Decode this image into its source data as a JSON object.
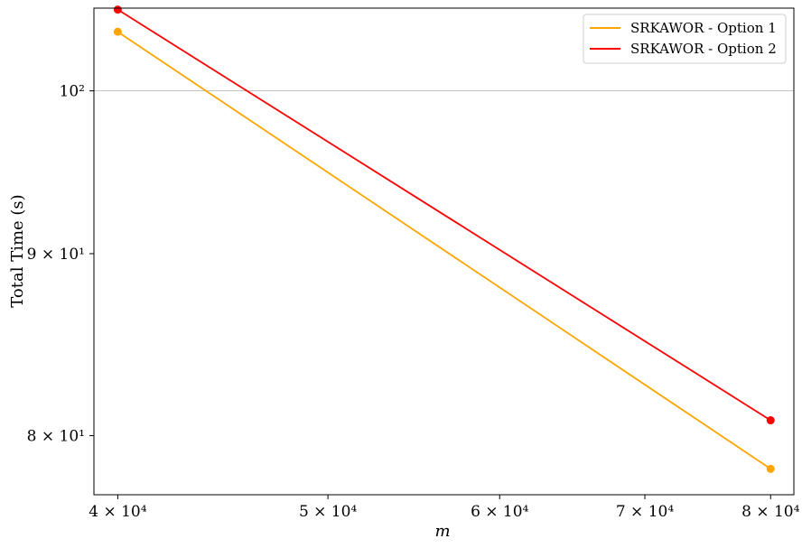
{
  "chart_data": {
    "type": "line",
    "xlabel": "m",
    "ylabel": "Total Time (s)",
    "x_scale": "log",
    "y_scale": "log",
    "xlim": [
      39000,
      82000
    ],
    "ylim": [
      77000,
      105500
    ],
    "x_ticks": [
      {
        "value": 40000,
        "label": "4 × 10⁴"
      },
      {
        "value": 50000,
        "label": "5 × 10⁴"
      },
      {
        "value": 60000,
        "label": "6 × 10⁴"
      },
      {
        "value": 70000,
        "label": "7 × 10⁴"
      },
      {
        "value": 80000,
        "label": "8 × 10⁴"
      }
    ],
    "y_ticks": [
      {
        "value": 80000,
        "label": "8 × 10¹"
      },
      {
        "value": 90000,
        "label": "9 × 10¹"
      },
      {
        "value": 100000,
        "label": "10²"
      }
    ],
    "grid": "y-major",
    "legend_position": "top-right",
    "series": [
      {
        "name": "SRKAWOR - Option 1",
        "color": "#FFA500",
        "x": [
          40000,
          80000
        ],
        "y": [
          103900,
          78300
        ]
      },
      {
        "name": "SRKAWOR - Option 2",
        "color": "#FF0000",
        "x": [
          40000,
          80000
        ],
        "y": [
          105400,
          80800
        ]
      }
    ]
  }
}
